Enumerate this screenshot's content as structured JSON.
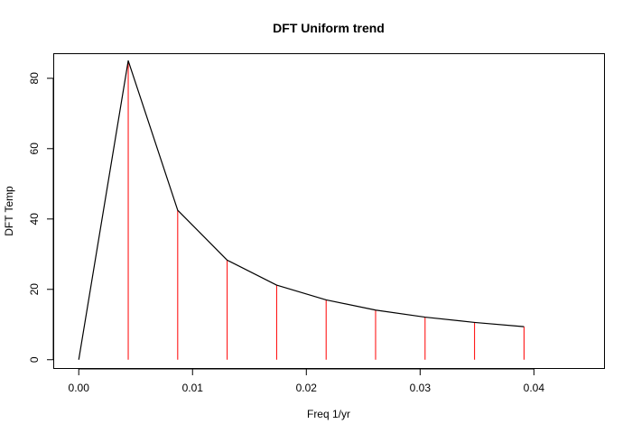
{
  "chart_data": {
    "type": "line",
    "title": "DFT Uniform trend",
    "xlabel": "Freq 1/yr",
    "ylabel": "DFT Temp",
    "xlim": [
      -0.0022,
      0.0462
    ],
    "ylim": [
      -2.5,
      87
    ],
    "x_ticks": [
      0.0,
      0.01,
      0.02,
      0.03,
      0.04
    ],
    "x_tick_labels": [
      "0.00",
      "0.01",
      "0.02",
      "0.03",
      "0.04"
    ],
    "y_ticks": [
      0,
      20,
      40,
      60,
      80
    ],
    "y_tick_labels": [
      "0",
      "20",
      "40",
      "60",
      "80"
    ],
    "grid": false,
    "series": [
      {
        "style": "line",
        "color": "#000000",
        "x": [
          0.0,
          0.004348,
          0.008696,
          0.013043,
          0.017391,
          0.021739,
          0.026087,
          0.030435,
          0.034783,
          0.03913
        ],
        "y": [
          0,
          85,
          42.5,
          28.3,
          21.2,
          17.0,
          14.1,
          12.1,
          10.6,
          9.4
        ]
      },
      {
        "style": "spikes",
        "color": "#ff0000",
        "x": [
          0.004348,
          0.008696,
          0.013043,
          0.017391,
          0.021739,
          0.026087,
          0.030435,
          0.034783,
          0.03913
        ],
        "y": [
          85,
          42.5,
          28.3,
          21.2,
          17.0,
          14.1,
          12.1,
          10.6,
          9.4
        ]
      }
    ]
  }
}
